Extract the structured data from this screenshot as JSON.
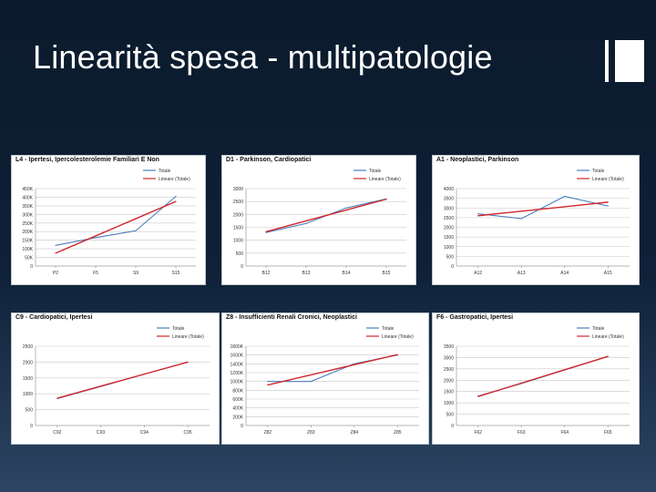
{
  "slide": {
    "title": "Linearità spesa - multipatologie"
  },
  "legend_labels": [
    "Totale",
    "Lineare (Totale)"
  ],
  "colors": {
    "totale": "#4a7ebb",
    "lineare": "#d0282e",
    "grid": "#c8c8c8"
  },
  "chart_data": [
    {
      "type": "line",
      "title": "L4 - Ipertesi, Ipercolesterolemie Familiari E Non",
      "categories": [
        "P2",
        "F5",
        "S9",
        "S15"
      ],
      "yticks": [
        "0",
        "50K",
        "100K",
        "150K",
        "200K",
        "250K",
        "300K",
        "350K",
        "400K",
        "450K"
      ],
      "ylim": [
        0,
        450
      ],
      "legend_position": "top-right",
      "series": [
        {
          "name": "Totale",
          "values": [
            120,
            165,
            205,
            405
          ]
        },
        {
          "name": "Lineare (Totale)",
          "values": [
            75,
            175,
            275,
            375
          ]
        }
      ]
    },
    {
      "type": "line",
      "title": "D1 - Parkinson, Cardiopatici",
      "categories": [
        "B12",
        "B13",
        "B14",
        "B15"
      ],
      "yticks": [
        "0",
        "500",
        "1000",
        "1500",
        "2000",
        "2500",
        "3000"
      ],
      "ylim": [
        0,
        3000
      ],
      "legend_position": "top-right",
      "series": [
        {
          "name": "Totale",
          "values": [
            1300,
            1650,
            2250,
            2600
          ]
        },
        {
          "name": "Lineare (Totale)",
          "values": [
            1330,
            1750,
            2170,
            2590
          ]
        }
      ]
    },
    {
      "type": "line",
      "title": "A1 - Neoplastici, Parkinson",
      "categories": [
        "A12",
        "A13",
        "A14",
        "A15"
      ],
      "yticks": [
        "0",
        "500",
        "1000",
        "1500",
        "2000",
        "2500",
        "3000",
        "3500",
        "4000"
      ],
      "ylim": [
        0,
        4000
      ],
      "legend_position": "top-right",
      "series": [
        {
          "name": "Totale",
          "values": [
            2700,
            2450,
            3600,
            3100
          ]
        },
        {
          "name": "Lineare (Totale)",
          "values": [
            2600,
            2830,
            3060,
            3300
          ]
        }
      ]
    },
    {
      "type": "line",
      "title": "C9 - Cardiopatici, Ipertesi",
      "categories": [
        "C92",
        "C93",
        "C94",
        "C95"
      ],
      "yticks": [
        "0",
        "500",
        "1000",
        "1500",
        "2000",
        "2500"
      ],
      "ylim": [
        0,
        2500
      ],
      "legend_position": "top-right",
      "series": [
        {
          "name": "Totale",
          "values": [
            850,
            1230,
            1620,
            2000
          ]
        },
        {
          "name": "Lineare (Totale)",
          "values": [
            860,
            1240,
            1620,
            2000
          ]
        }
      ]
    },
    {
      "type": "line",
      "title": "Z8 - Insufficienti Renali Cronici, Neoplastici",
      "categories": [
        "Z82",
        "Z83",
        "Z84",
        "Z85"
      ],
      "yticks": [
        "0",
        "200K",
        "400K",
        "600K",
        "800K",
        "1000K",
        "1200K",
        "1400K",
        "1600K",
        "1800K"
      ],
      "ylim": [
        0,
        1800
      ],
      "legend_position": "top-right",
      "series": [
        {
          "name": "Totale",
          "values": [
            1000,
            1000,
            1400,
            1600
          ]
        },
        {
          "name": "Lineare (Totale)",
          "values": [
            920,
            1150,
            1380,
            1610
          ]
        }
      ]
    },
    {
      "type": "line",
      "title": "F6 - Gastropatici, Ipertesi",
      "categories": [
        "F62",
        "F63",
        "F64",
        "F65"
      ],
      "yticks": [
        "0",
        "500",
        "1000",
        "1500",
        "2000",
        "2500",
        "3000",
        "3500"
      ],
      "ylim": [
        0,
        3500
      ],
      "legend_position": "top-right",
      "series": [
        {
          "name": "Totale",
          "values": [
            1300,
            1850,
            2450,
            3050
          ]
        },
        {
          "name": "Lineare (Totale)",
          "values": [
            1280,
            1870,
            2460,
            3050
          ]
        }
      ]
    }
  ]
}
